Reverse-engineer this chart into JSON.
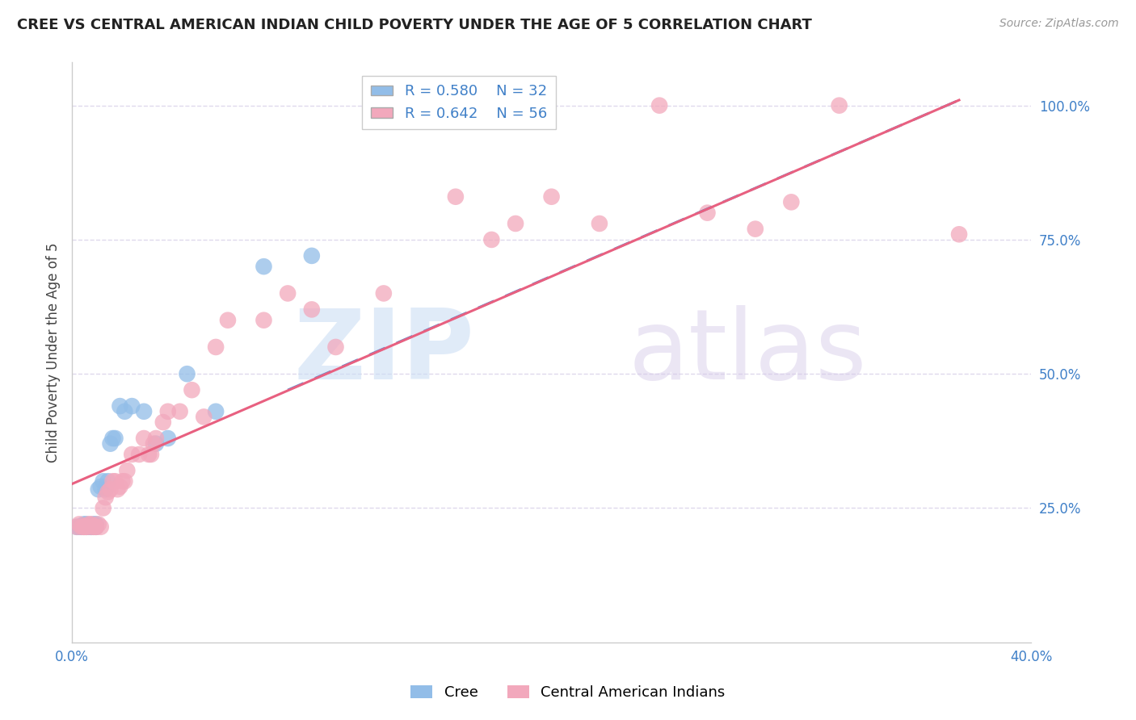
{
  "title": "CREE VS CENTRAL AMERICAN INDIAN CHILD POVERTY UNDER THE AGE OF 5 CORRELATION CHART",
  "source": "Source: ZipAtlas.com",
  "ylabel": "Child Poverty Under the Age of 5",
  "xlim": [
    0.0,
    0.4
  ],
  "ylim": [
    0.0,
    1.08
  ],
  "yticks": [
    0.25,
    0.5,
    0.75,
    1.0
  ],
  "ytick_labels": [
    "25.0%",
    "50.0%",
    "75.0%",
    "100.0%"
  ],
  "xticks": [
    0.0,
    0.05,
    0.1,
    0.15,
    0.2,
    0.25,
    0.3,
    0.35,
    0.4
  ],
  "xtick_labels": [
    "0.0%",
    "",
    "",
    "",
    "",
    "",
    "",
    "",
    "40.0%"
  ],
  "cree_color": "#92BDE8",
  "cai_color": "#F2A8BC",
  "cree_line_color": "#6090D0",
  "cai_line_color": "#E86080",
  "cree_R": 0.58,
  "cree_N": 32,
  "cai_R": 0.642,
  "cai_N": 56,
  "background_color": "#FFFFFF",
  "grid_color": "#D8D0E8",
  "watermark_zip": "ZIP",
  "watermark_atlas": "atlas",
  "legend_labels": [
    "Cree",
    "Central American Indians"
  ],
  "cree_line_x": [
    0.09,
    0.37
  ],
  "cree_line_y": [
    0.47,
    1.01
  ],
  "cai_line_x": [
    0.0,
    0.37
  ],
  "cai_line_y": [
    0.295,
    1.01
  ],
  "cree_x": [
    0.002,
    0.003,
    0.004,
    0.005,
    0.005,
    0.006,
    0.006,
    0.007,
    0.008,
    0.008,
    0.009,
    0.009,
    0.01,
    0.01,
    0.011,
    0.012,
    0.013,
    0.014,
    0.015,
    0.016,
    0.017,
    0.018,
    0.02,
    0.022,
    0.025,
    0.03,
    0.035,
    0.04,
    0.048,
    0.06,
    0.08,
    0.1
  ],
  "cree_y": [
    0.215,
    0.215,
    0.215,
    0.215,
    0.22,
    0.215,
    0.22,
    0.215,
    0.215,
    0.215,
    0.22,
    0.215,
    0.22,
    0.215,
    0.285,
    0.29,
    0.3,
    0.285,
    0.3,
    0.37,
    0.38,
    0.38,
    0.44,
    0.43,
    0.44,
    0.43,
    0.37,
    0.38,
    0.5,
    0.43,
    0.7,
    0.72
  ],
  "cai_x": [
    0.002,
    0.003,
    0.004,
    0.005,
    0.005,
    0.006,
    0.006,
    0.007,
    0.008,
    0.008,
    0.009,
    0.01,
    0.01,
    0.011,
    0.012,
    0.013,
    0.014,
    0.015,
    0.016,
    0.017,
    0.018,
    0.019,
    0.02,
    0.021,
    0.022,
    0.023,
    0.025,
    0.028,
    0.03,
    0.032,
    0.033,
    0.034,
    0.035,
    0.038,
    0.04,
    0.045,
    0.05,
    0.055,
    0.06,
    0.065,
    0.08,
    0.09,
    0.1,
    0.11,
    0.13,
    0.16,
    0.175,
    0.185,
    0.2,
    0.22,
    0.245,
    0.265,
    0.285,
    0.3,
    0.32,
    0.37
  ],
  "cai_y": [
    0.215,
    0.22,
    0.215,
    0.215,
    0.215,
    0.215,
    0.215,
    0.22,
    0.215,
    0.22,
    0.215,
    0.215,
    0.215,
    0.22,
    0.215,
    0.25,
    0.27,
    0.28,
    0.285,
    0.3,
    0.3,
    0.285,
    0.29,
    0.3,
    0.3,
    0.32,
    0.35,
    0.35,
    0.38,
    0.35,
    0.35,
    0.37,
    0.38,
    0.41,
    0.43,
    0.43,
    0.47,
    0.42,
    0.55,
    0.6,
    0.6,
    0.65,
    0.62,
    0.55,
    0.65,
    0.83,
    0.75,
    0.78,
    0.83,
    0.78,
    1.0,
    0.8,
    0.77,
    0.82,
    1.0,
    0.76
  ]
}
